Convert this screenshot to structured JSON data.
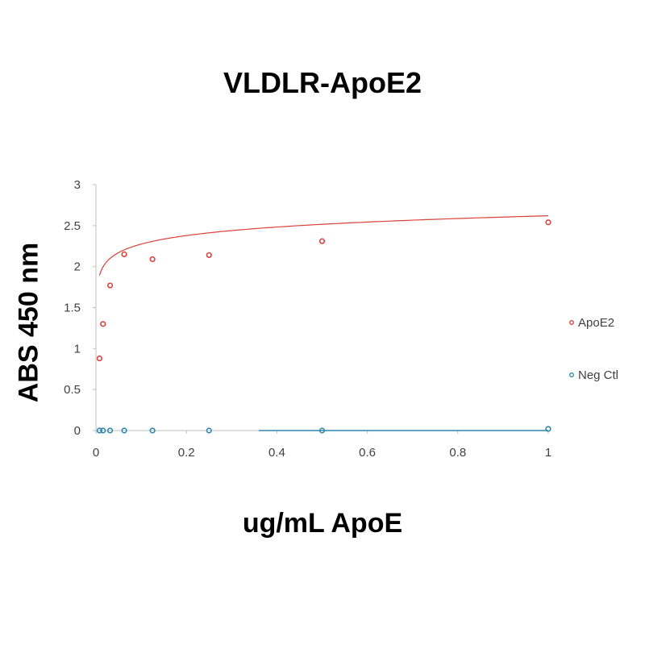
{
  "chart_data": {
    "type": "scatter",
    "title": "VLDLR-ApoE2",
    "xlabel": "ug/mL ApoE",
    "ylabel": "ABS 450 nm",
    "xlim": [
      0,
      1
    ],
    "ylim": [
      0,
      3
    ],
    "xticks": [
      "0",
      "0.2",
      "0.4",
      "0.6",
      "0.8",
      "1"
    ],
    "yticks": [
      "0",
      "0.5",
      "1",
      "1.5",
      "2",
      "2.5",
      "3"
    ],
    "grid": false,
    "legend_position": "right",
    "series": [
      {
        "name": "ApoE2",
        "color": "#d9413a",
        "x": [
          0.0078,
          0.0156,
          0.03125,
          0.0625,
          0.125,
          0.25,
          0.5,
          1.0
        ],
        "y": [
          0.88,
          1.3,
          1.77,
          2.15,
          2.09,
          2.14,
          2.31,
          2.54
        ],
        "trendline": {
          "type": "logarithmic",
          "a": 2.62,
          "b": 0.3
        }
      },
      {
        "name": "Neg Ctl",
        "color": "#2e86ab",
        "x": [
          0.0078,
          0.0156,
          0.03125,
          0.0625,
          0.125,
          0.25,
          0.5,
          1.0
        ],
        "y": [
          0.0,
          0.0,
          0.0,
          0.0,
          0.0,
          0.0,
          0.0,
          0.02
        ],
        "trendline": {
          "type": "linear",
          "x_start": 0.36,
          "x_end": 1.0,
          "y": 0.0
        }
      }
    ]
  }
}
